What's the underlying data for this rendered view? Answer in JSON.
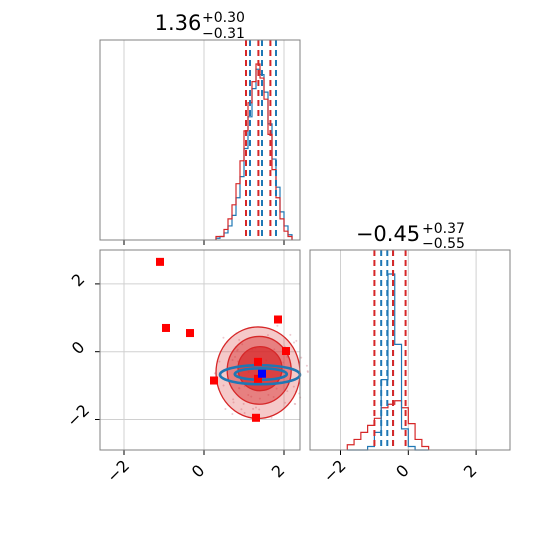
{
  "colors": {
    "red": "#d62728",
    "red_square": "#ff0000",
    "blue": "#1f77b4",
    "blue_square": "#0000ff",
    "grid": "#d0d0d0",
    "axis": "#808080"
  },
  "chart_data": {
    "type": "corner",
    "grid": true,
    "parameters": [
      {
        "title_main": "1.36",
        "title_plus": "+0.30",
        "title_minus": "−0.31",
        "range": [
          -2.6,
          2.4
        ],
        "ticks": [
          -2,
          0,
          2
        ],
        "tick_labels": [
          "−2",
          "0",
          "2"
        ],
        "quantiles_red": [
          1.05,
          1.36,
          1.66
        ],
        "quantiles_blue": [
          1.15,
          1.45,
          1.8
        ]
      },
      {
        "title_main": "−0.45",
        "title_plus": "+0.37",
        "title_minus": "−0.55",
        "range": [
          -2.9,
          3.0
        ],
        "ticks": [
          -2,
          0,
          2
        ],
        "tick_labels": [
          "−2",
          "0",
          "2"
        ],
        "quantiles_red": [
          -1.0,
          -0.45,
          -0.08
        ],
        "quantiles_blue": [
          -0.8,
          -0.62,
          -0.45
        ]
      }
    ],
    "hist_x": {
      "bin_edges": [
        0.3,
        0.4,
        0.5,
        0.6,
        0.7,
        0.8,
        0.9,
        1.0,
        1.1,
        1.2,
        1.3,
        1.4,
        1.5,
        1.6,
        1.7,
        1.8,
        1.9,
        2.0,
        2.1,
        2.2
      ],
      "red": [
        2,
        2,
        6,
        12,
        20,
        32,
        45,
        62,
        78,
        90,
        100,
        92,
        80,
        60,
        40,
        24,
        12,
        5,
        2
      ],
      "blue": [
        1,
        2,
        4,
        8,
        14,
        24,
        36,
        52,
        70,
        86,
        97,
        94,
        84,
        66,
        46,
        30,
        16,
        8,
        3
      ]
    },
    "hist_y": {
      "bin_edges": [
        -1.8,
        -1.6,
        -1.4,
        -1.2,
        -1.0,
        -0.8,
        -0.6,
        -0.4,
        -0.2,
        0.0,
        0.2,
        0.4,
        0.6
      ],
      "red": [
        3,
        6,
        10,
        14,
        18,
        24,
        26,
        28,
        24,
        15,
        6,
        2
      ],
      "blue": [
        0,
        0,
        0,
        2,
        10,
        40,
        100,
        60,
        12,
        2,
        0,
        0
      ]
    },
    "red_squares": [
      {
        "x": -1.1,
        "y": 2.65
      },
      {
        "x": -0.95,
        "y": 0.7
      },
      {
        "x": -0.35,
        "y": 0.55
      },
      {
        "x": 0.25,
        "y": -0.85
      },
      {
        "x": 1.35,
        "y": -0.3
      },
      {
        "x": 1.35,
        "y": -0.8
      },
      {
        "x": 1.85,
        "y": 0.95
      },
      {
        "x": 2.05,
        "y": 0.02
      },
      {
        "x": 1.3,
        "y": -1.95
      }
    ],
    "blue_square": {
      "x": 1.45,
      "y": -0.65
    },
    "red_contours": [
      {
        "cx": 1.35,
        "cy": -0.62,
        "rx": 1.05,
        "ry": 1.35,
        "level": 0.25
      },
      {
        "cx": 1.38,
        "cy": -0.55,
        "rx": 0.8,
        "ry": 1.0,
        "level": 0.45
      },
      {
        "cx": 1.4,
        "cy": -0.5,
        "rx": 0.55,
        "ry": 0.65,
        "level": 0.7
      }
    ],
    "blue_contours": [
      {
        "cx": 1.4,
        "cy": -0.68,
        "rx": 1.0,
        "ry": 0.28
      },
      {
        "cx": 1.42,
        "cy": -0.66,
        "rx": 0.65,
        "ry": 0.17
      }
    ]
  }
}
